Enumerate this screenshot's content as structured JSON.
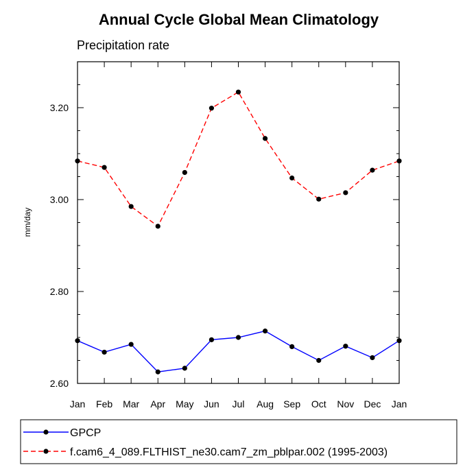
{
  "chart_data": {
    "type": "line",
    "title": "Annual Cycle Global Mean Climatology",
    "subtitle": "Precipitation rate",
    "xlabel": "",
    "ylabel": "mm/day",
    "categories": [
      "Jan",
      "Feb",
      "Mar",
      "Apr",
      "May",
      "Jun",
      "Jul",
      "Aug",
      "Sep",
      "Oct",
      "Nov",
      "Dec",
      "Jan"
    ],
    "ylim": [
      2.6,
      3.3
    ],
    "yticks": [
      "2.60",
      "2.80",
      "3.00",
      "3.20"
    ],
    "grid": false,
    "legend_position": "bottom",
    "series": [
      {
        "name": "GPCP",
        "color": "#0000ff",
        "dash": "solid",
        "values": [
          2.693,
          2.668,
          2.685,
          2.625,
          2.633,
          2.695,
          2.7,
          2.714,
          2.68,
          2.65,
          2.681,
          2.656,
          2.693
        ]
      },
      {
        "name": "f.cam6_4_089.FLTHIST_ne30.cam7_zm_pblpar.002 (1995-2003)",
        "color": "#ff0000",
        "dash": "dashed",
        "values": [
          3.084,
          3.07,
          2.985,
          2.942,
          3.059,
          3.199,
          3.234,
          3.133,
          3.047,
          3.001,
          3.015,
          3.064,
          3.084
        ]
      }
    ]
  }
}
